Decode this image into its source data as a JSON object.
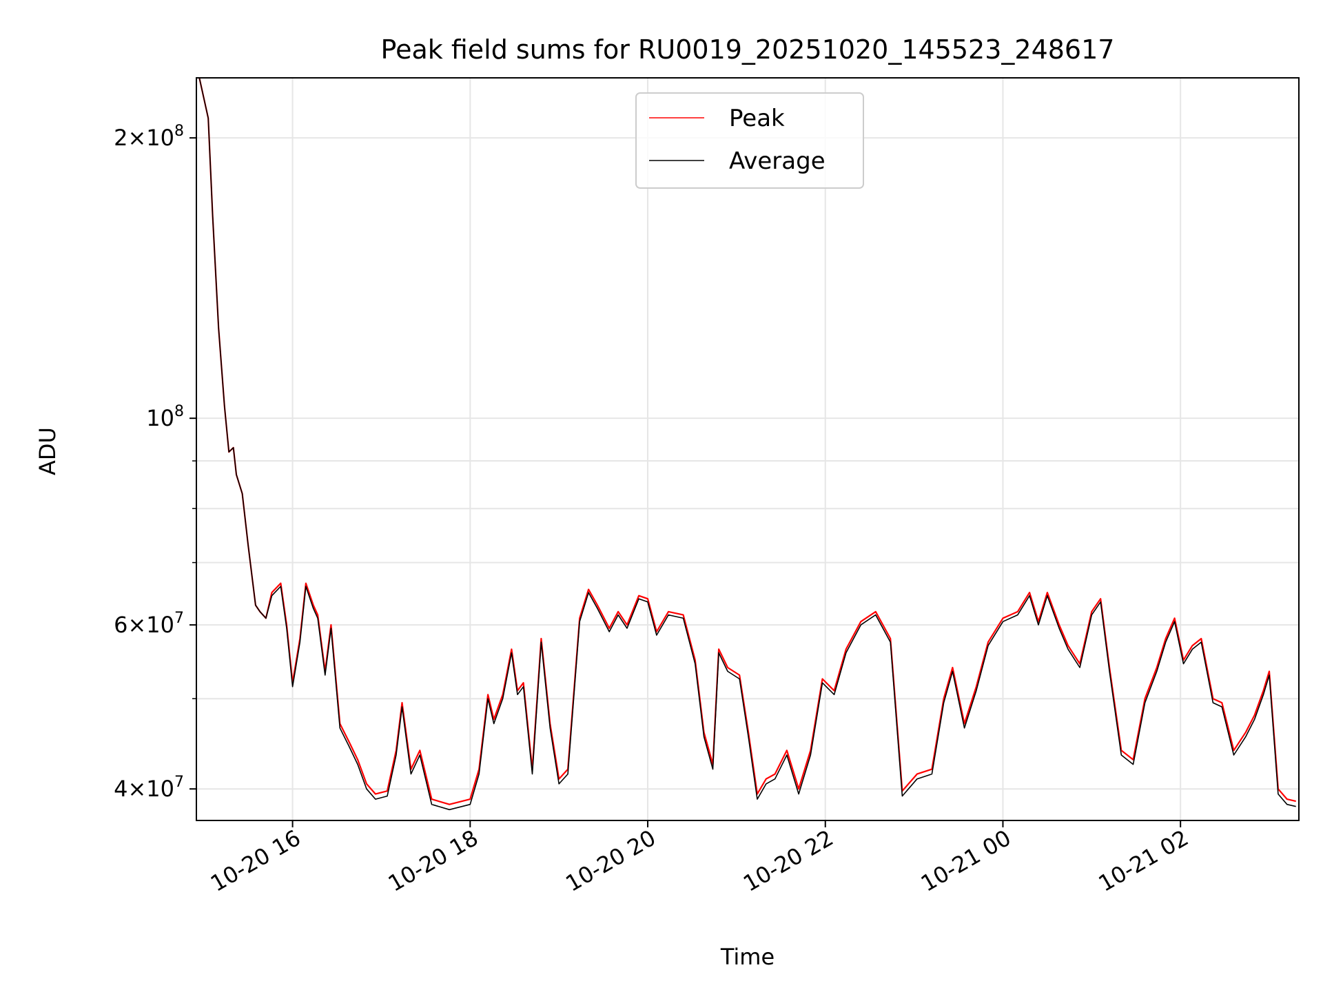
{
  "chart_data": {
    "type": "line",
    "title": "Peak field sums for RU0019_20251020_145523_248617",
    "xlabel": "Time",
    "ylabel": "ADU",
    "yscale": "log",
    "grid": true,
    "legend_position": "top-center",
    "xlim": [
      "2025-10-20 14:55",
      "2025-10-21 03:20"
    ],
    "ylim": [
      37000000,
      232000000
    ],
    "x_ticks": [
      {
        "t": "2025-10-20 16:00",
        "label": "10-20 16"
      },
      {
        "t": "2025-10-20 18:00",
        "label": "10-20 18"
      },
      {
        "t": "2025-10-20 20:00",
        "label": "10-20 20"
      },
      {
        "t": "2025-10-20 22:00",
        "label": "10-20 22"
      },
      {
        "t": "2025-10-21 00:00",
        "label": "10-21 00"
      },
      {
        "t": "2025-10-21 02:00",
        "label": "10-21 02"
      }
    ],
    "y_ticks": [
      {
        "value": 40000000,
        "mantissa": "4",
        "exponent": "7"
      },
      {
        "value": 60000000,
        "mantissa": "6",
        "exponent": "7"
      },
      {
        "value": 100000000,
        "mantissa": "",
        "exponent": "8"
      },
      {
        "value": 200000000,
        "mantissa": "2",
        "exponent": "8"
      }
    ],
    "y_minor_ticks": [
      50000000,
      70000000,
      80000000,
      90000000
    ],
    "tick_base": "10",
    "tick_times": "×",
    "series": [
      {
        "name": "Peak",
        "color": "#ff0000",
        "values": [
          [
            "2025-10-20 14:57",
            232000000
          ],
          [
            "2025-10-20 15:03",
            210000000
          ],
          [
            "2025-10-20 15:06",
            165000000
          ],
          [
            "2025-10-20 15:10",
            125000000
          ],
          [
            "2025-10-20 15:14",
            103000000
          ],
          [
            "2025-10-20 15:17",
            92000000
          ],
          [
            "2025-10-20 15:20",
            93000000
          ],
          [
            "2025-10-20 15:22",
            87000000
          ],
          [
            "2025-10-20 15:26",
            83000000
          ],
          [
            "2025-10-20 15:30",
            73000000
          ],
          [
            "2025-10-20 15:35",
            63000000
          ],
          [
            "2025-10-20 15:38",
            62000000
          ],
          [
            "2025-10-20 15:42",
            61000000
          ],
          [
            "2025-10-20 15:46",
            65000000
          ],
          [
            "2025-10-20 15:52",
            66500000
          ],
          [
            "2025-10-20 15:56",
            60000000
          ],
          [
            "2025-10-20 16:00",
            52000000
          ],
          [
            "2025-10-20 16:05",
            58000000
          ],
          [
            "2025-10-20 16:09",
            66500000
          ],
          [
            "2025-10-20 16:14",
            63000000
          ],
          [
            "2025-10-20 16:17",
            61500000
          ],
          [
            "2025-10-20 16:22",
            53500000
          ],
          [
            "2025-10-20 16:26",
            60000000
          ],
          [
            "2025-10-20 16:32",
            47000000
          ],
          [
            "2025-10-20 16:38",
            45000000
          ],
          [
            "2025-10-20 16:44",
            43000000
          ],
          [
            "2025-10-20 16:50",
            40500000
          ],
          [
            "2025-10-20 16:56",
            39500000
          ],
          [
            "2025-10-20 17:04",
            39800000
          ],
          [
            "2025-10-20 17:10",
            44000000
          ],
          [
            "2025-10-20 17:14",
            49500000
          ],
          [
            "2025-10-20 17:20",
            42000000
          ],
          [
            "2025-10-20 17:26",
            44000000
          ],
          [
            "2025-10-20 17:34",
            39000000
          ],
          [
            "2025-10-20 17:46",
            38500000
          ],
          [
            "2025-10-20 18:00",
            39000000
          ],
          [
            "2025-10-20 18:06",
            42000000
          ],
          [
            "2025-10-20 18:12",
            50500000
          ],
          [
            "2025-10-20 18:16",
            47500000
          ],
          [
            "2025-10-20 18:22",
            50500000
          ],
          [
            "2025-10-20 18:28",
            56500000
          ],
          [
            "2025-10-20 18:32",
            51000000
          ],
          [
            "2025-10-20 18:36",
            52000000
          ],
          [
            "2025-10-20 18:42",
            42000000
          ],
          [
            "2025-10-20 18:48",
            58000000
          ],
          [
            "2025-10-20 18:54",
            47000000
          ],
          [
            "2025-10-20 19:00",
            41000000
          ],
          [
            "2025-10-20 19:06",
            42000000
          ],
          [
            "2025-10-20 19:14",
            61000000
          ],
          [
            "2025-10-20 19:20",
            65500000
          ],
          [
            "2025-10-20 19:26",
            63000000
          ],
          [
            "2025-10-20 19:34",
            59500000
          ],
          [
            "2025-10-20 19:40",
            62000000
          ],
          [
            "2025-10-20 19:46",
            60000000
          ],
          [
            "2025-10-20 19:54",
            64500000
          ],
          [
            "2025-10-20 20:00",
            64000000
          ],
          [
            "2025-10-20 20:06",
            59000000
          ],
          [
            "2025-10-20 20:14",
            62000000
          ],
          [
            "2025-10-20 20:24",
            61500000
          ],
          [
            "2025-10-20 20:32",
            55000000
          ],
          [
            "2025-10-20 20:38",
            46000000
          ],
          [
            "2025-10-20 20:44",
            42500000
          ],
          [
            "2025-10-20 20:48",
            56500000
          ],
          [
            "2025-10-20 20:54",
            54000000
          ],
          [
            "2025-10-20 21:02",
            53000000
          ],
          [
            "2025-10-20 21:08",
            46000000
          ],
          [
            "2025-10-20 21:14",
            39500000
          ],
          [
            "2025-10-20 21:20",
            41000000
          ],
          [
            "2025-10-20 21:26",
            41500000
          ],
          [
            "2025-10-20 21:34",
            44000000
          ],
          [
            "2025-10-20 21:42",
            40000000
          ],
          [
            "2025-10-20 21:50",
            44000000
          ],
          [
            "2025-10-20 21:58",
            52500000
          ],
          [
            "2025-10-20 22:06",
            51000000
          ],
          [
            "2025-10-20 22:14",
            56500000
          ],
          [
            "2025-10-20 22:24",
            60500000
          ],
          [
            "2025-10-20 22:34",
            62000000
          ],
          [
            "2025-10-20 22:44",
            58000000
          ],
          [
            "2025-10-20 22:52",
            39800000
          ],
          [
            "2025-10-20 23:02",
            41500000
          ],
          [
            "2025-10-20 23:12",
            42000000
          ],
          [
            "2025-10-20 23:20",
            50000000
          ],
          [
            "2025-10-20 23:26",
            54000000
          ],
          [
            "2025-10-20 23:34",
            47000000
          ],
          [
            "2025-10-20 23:42",
            51500000
          ],
          [
            "2025-10-20 23:50",
            57500000
          ],
          [
            "2025-10-21 00:00",
            61000000
          ],
          [
            "2025-10-21 00:10",
            62000000
          ],
          [
            "2025-10-21 00:18",
            65000000
          ],
          [
            "2025-10-21 00:24",
            60500000
          ],
          [
            "2025-10-21 00:30",
            65000000
          ],
          [
            "2025-10-21 00:38",
            60000000
          ],
          [
            "2025-10-21 00:44",
            57000000
          ],
          [
            "2025-10-21 00:52",
            54500000
          ],
          [
            "2025-10-21 01:00",
            62000000
          ],
          [
            "2025-10-21 01:06",
            64000000
          ],
          [
            "2025-10-21 01:12",
            54000000
          ],
          [
            "2025-10-21 01:20",
            44000000
          ],
          [
            "2025-10-21 01:28",
            43000000
          ],
          [
            "2025-10-21 01:36",
            50000000
          ],
          [
            "2025-10-21 01:44",
            54000000
          ],
          [
            "2025-10-21 01:50",
            58000000
          ],
          [
            "2025-10-21 01:56",
            61000000
          ],
          [
            "2025-10-21 02:02",
            55000000
          ],
          [
            "2025-10-21 02:08",
            57000000
          ],
          [
            "2025-10-21 02:14",
            58000000
          ],
          [
            "2025-10-21 02:22",
            50000000
          ],
          [
            "2025-10-21 02:28",
            49500000
          ],
          [
            "2025-10-21 02:36",
            44000000
          ],
          [
            "2025-10-21 02:44",
            46000000
          ],
          [
            "2025-10-21 02:50",
            48000000
          ],
          [
            "2025-10-21 02:56",
            51000000
          ],
          [
            "2025-10-21 03:00",
            53500000
          ],
          [
            "2025-10-21 03:06",
            40000000
          ],
          [
            "2025-10-21 03:12",
            39000000
          ],
          [
            "2025-10-21 03:18",
            38800000
          ]
        ]
      },
      {
        "name": "Average",
        "color": "#000000",
        "values": [
          [
            "2025-10-20 14:57",
            232000000
          ],
          [
            "2025-10-20 15:03",
            210000000
          ],
          [
            "2025-10-20 15:06",
            165000000
          ],
          [
            "2025-10-20 15:10",
            125000000
          ],
          [
            "2025-10-20 15:14",
            103000000
          ],
          [
            "2025-10-20 15:17",
            92000000
          ],
          [
            "2025-10-20 15:20",
            93000000
          ],
          [
            "2025-10-20 15:22",
            87000000
          ],
          [
            "2025-10-20 15:26",
            83000000
          ],
          [
            "2025-10-20 15:30",
            73000000
          ],
          [
            "2025-10-20 15:35",
            63000000
          ],
          [
            "2025-10-20 15:38",
            62000000
          ],
          [
            "2025-10-20 15:42",
            61000000
          ],
          [
            "2025-10-20 15:46",
            64500000
          ],
          [
            "2025-10-20 15:52",
            66000000
          ],
          [
            "2025-10-20 15:56",
            59500000
          ],
          [
            "2025-10-20 16:00",
            51500000
          ],
          [
            "2025-10-20 16:05",
            57500000
          ],
          [
            "2025-10-20 16:09",
            66000000
          ],
          [
            "2025-10-20 16:14",
            62500000
          ],
          [
            "2025-10-20 16:17",
            61000000
          ],
          [
            "2025-10-20 16:22",
            53000000
          ],
          [
            "2025-10-20 16:26",
            59500000
          ],
          [
            "2025-10-20 16:32",
            46500000
          ],
          [
            "2025-10-20 16:38",
            44500000
          ],
          [
            "2025-10-20 16:44",
            42500000
          ],
          [
            "2025-10-20 16:50",
            40000000
          ],
          [
            "2025-10-20 16:56",
            39000000
          ],
          [
            "2025-10-20 17:04",
            39300000
          ],
          [
            "2025-10-20 17:10",
            43500000
          ],
          [
            "2025-10-20 17:14",
            49000000
          ],
          [
            "2025-10-20 17:20",
            41500000
          ],
          [
            "2025-10-20 17:26",
            43500000
          ],
          [
            "2025-10-20 17:34",
            38500000
          ],
          [
            "2025-10-20 17:46",
            38000000
          ],
          [
            "2025-10-20 18:00",
            38500000
          ],
          [
            "2025-10-20 18:06",
            41500000
          ],
          [
            "2025-10-20 18:12",
            50000000
          ],
          [
            "2025-10-20 18:16",
            47000000
          ],
          [
            "2025-10-20 18:22",
            50000000
          ],
          [
            "2025-10-20 18:28",
            56000000
          ],
          [
            "2025-10-20 18:32",
            50500000
          ],
          [
            "2025-10-20 18:36",
            51500000
          ],
          [
            "2025-10-20 18:42",
            41500000
          ],
          [
            "2025-10-20 18:48",
            57500000
          ],
          [
            "2025-10-20 18:54",
            46500000
          ],
          [
            "2025-10-20 19:00",
            40500000
          ],
          [
            "2025-10-20 19:06",
            41500000
          ],
          [
            "2025-10-20 19:14",
            60500000
          ],
          [
            "2025-10-20 19:20",
            65000000
          ],
          [
            "2025-10-20 19:26",
            62500000
          ],
          [
            "2025-10-20 19:34",
            59000000
          ],
          [
            "2025-10-20 19:40",
            61500000
          ],
          [
            "2025-10-20 19:46",
            59500000
          ],
          [
            "2025-10-20 19:54",
            64000000
          ],
          [
            "2025-10-20 20:00",
            63500000
          ],
          [
            "2025-10-20 20:06",
            58500000
          ],
          [
            "2025-10-20 20:14",
            61500000
          ],
          [
            "2025-10-20 20:24",
            61000000
          ],
          [
            "2025-10-20 20:32",
            54500000
          ],
          [
            "2025-10-20 20:38",
            45500000
          ],
          [
            "2025-10-20 20:44",
            42000000
          ],
          [
            "2025-10-20 20:48",
            56000000
          ],
          [
            "2025-10-20 20:54",
            53500000
          ],
          [
            "2025-10-20 21:02",
            52500000
          ],
          [
            "2025-10-20 21:08",
            45500000
          ],
          [
            "2025-10-20 21:14",
            39000000
          ],
          [
            "2025-10-20 21:20",
            40500000
          ],
          [
            "2025-10-20 21:26",
            41000000
          ],
          [
            "2025-10-20 21:34",
            43500000
          ],
          [
            "2025-10-20 21:42",
            39500000
          ],
          [
            "2025-10-20 21:50",
            43500000
          ],
          [
            "2025-10-20 21:58",
            52000000
          ],
          [
            "2025-10-20 22:06",
            50500000
          ],
          [
            "2025-10-20 22:14",
            56000000
          ],
          [
            "2025-10-20 22:24",
            60000000
          ],
          [
            "2025-10-20 22:34",
            61500000
          ],
          [
            "2025-10-20 22:44",
            57500000
          ],
          [
            "2025-10-20 22:52",
            39300000
          ],
          [
            "2025-10-20 23:02",
            41000000
          ],
          [
            "2025-10-20 23:12",
            41500000
          ],
          [
            "2025-10-20 23:20",
            49500000
          ],
          [
            "2025-10-20 23:26",
            53500000
          ],
          [
            "2025-10-20 23:34",
            46500000
          ],
          [
            "2025-10-20 23:42",
            51000000
          ],
          [
            "2025-10-20 23:50",
            57000000
          ],
          [
            "2025-10-21 00:00",
            60500000
          ],
          [
            "2025-10-21 00:10",
            61500000
          ],
          [
            "2025-10-21 00:18",
            64500000
          ],
          [
            "2025-10-21 00:24",
            60000000
          ],
          [
            "2025-10-21 00:30",
            64500000
          ],
          [
            "2025-10-21 00:38",
            59500000
          ],
          [
            "2025-10-21 00:44",
            56500000
          ],
          [
            "2025-10-21 00:52",
            54000000
          ],
          [
            "2025-10-21 01:00",
            61500000
          ],
          [
            "2025-10-21 01:06",
            63500000
          ],
          [
            "2025-10-21 01:12",
            53500000
          ],
          [
            "2025-10-21 01:20",
            43500000
          ],
          [
            "2025-10-21 01:28",
            42500000
          ],
          [
            "2025-10-21 01:36",
            49500000
          ],
          [
            "2025-10-21 01:44",
            53500000
          ],
          [
            "2025-10-21 01:50",
            57500000
          ],
          [
            "2025-10-21 01:56",
            60500000
          ],
          [
            "2025-10-21 02:02",
            54500000
          ],
          [
            "2025-10-21 02:08",
            56500000
          ],
          [
            "2025-10-21 02:14",
            57500000
          ],
          [
            "2025-10-21 02:22",
            49500000
          ],
          [
            "2025-10-21 02:28",
            49000000
          ],
          [
            "2025-10-21 02:36",
            43500000
          ],
          [
            "2025-10-21 02:44",
            45500000
          ],
          [
            "2025-10-21 02:50",
            47500000
          ],
          [
            "2025-10-21 02:56",
            50500000
          ],
          [
            "2025-10-21 03:00",
            53000000
          ],
          [
            "2025-10-21 03:06",
            39500000
          ],
          [
            "2025-10-21 03:12",
            38500000
          ],
          [
            "2025-10-21 03:18",
            38300000
          ]
        ]
      }
    ]
  }
}
